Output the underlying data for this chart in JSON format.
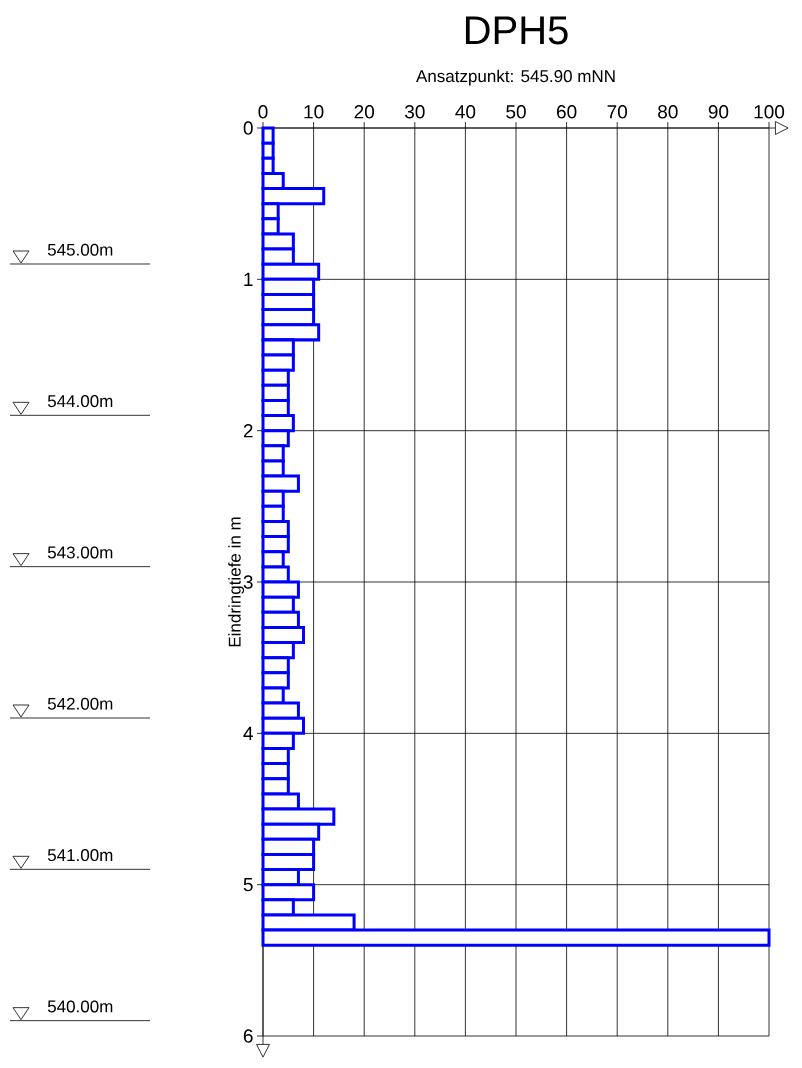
{
  "chart_data": {
    "type": "bar",
    "orientation": "horizontal",
    "title": "DPH5",
    "subtitle": "Ansatzpunkt: 545.90 mNN",
    "ylabel": "Eindringtiefe in m",
    "x": [
      0.05,
      0.15,
      0.25,
      0.35,
      0.45,
      0.55,
      0.65,
      0.75,
      0.85,
      0.95,
      1.05,
      1.15,
      1.25,
      1.35,
      1.45,
      1.55,
      1.65,
      1.75,
      1.85,
      1.95,
      2.05,
      2.15,
      2.25,
      2.35,
      2.45,
      2.55,
      2.65,
      2.75,
      2.85,
      2.95,
      3.05,
      3.15,
      3.25,
      3.35,
      3.45,
      3.55,
      3.65,
      3.75,
      3.85,
      3.95,
      4.05,
      4.15,
      4.25,
      4.35,
      4.45,
      4.55,
      4.65,
      4.75,
      4.85,
      4.95,
      5.05,
      5.15,
      5.25,
      5.35
    ],
    "values": [
      2,
      2,
      2,
      4,
      12,
      3,
      3,
      6,
      6,
      11,
      10,
      10,
      10,
      11,
      6,
      6,
      5,
      5,
      5,
      6,
      5,
      4,
      4,
      7,
      4,
      4,
      5,
      5,
      4,
      5,
      7,
      6,
      7,
      8,
      6,
      5,
      5,
      4,
      7,
      8,
      6,
      5,
      5,
      5,
      7,
      14,
      11,
      10,
      10,
      7,
      10,
      6,
      18,
      100
    ],
    "color": "#0000ff",
    "xlim": [
      0,
      100
    ],
    "xticks": [
      0,
      10,
      20,
      30,
      40,
      50,
      60,
      70,
      80,
      90,
      100
    ],
    "ylim": [
      6,
      0
    ],
    "yticks": [
      0,
      1,
      2,
      3,
      4,
      5,
      6
    ],
    "grid": true,
    "annotations": [
      "545.00m",
      "544.00m",
      "543.00m",
      "542.00m",
      "541.00m",
      "540.00m"
    ]
  }
}
